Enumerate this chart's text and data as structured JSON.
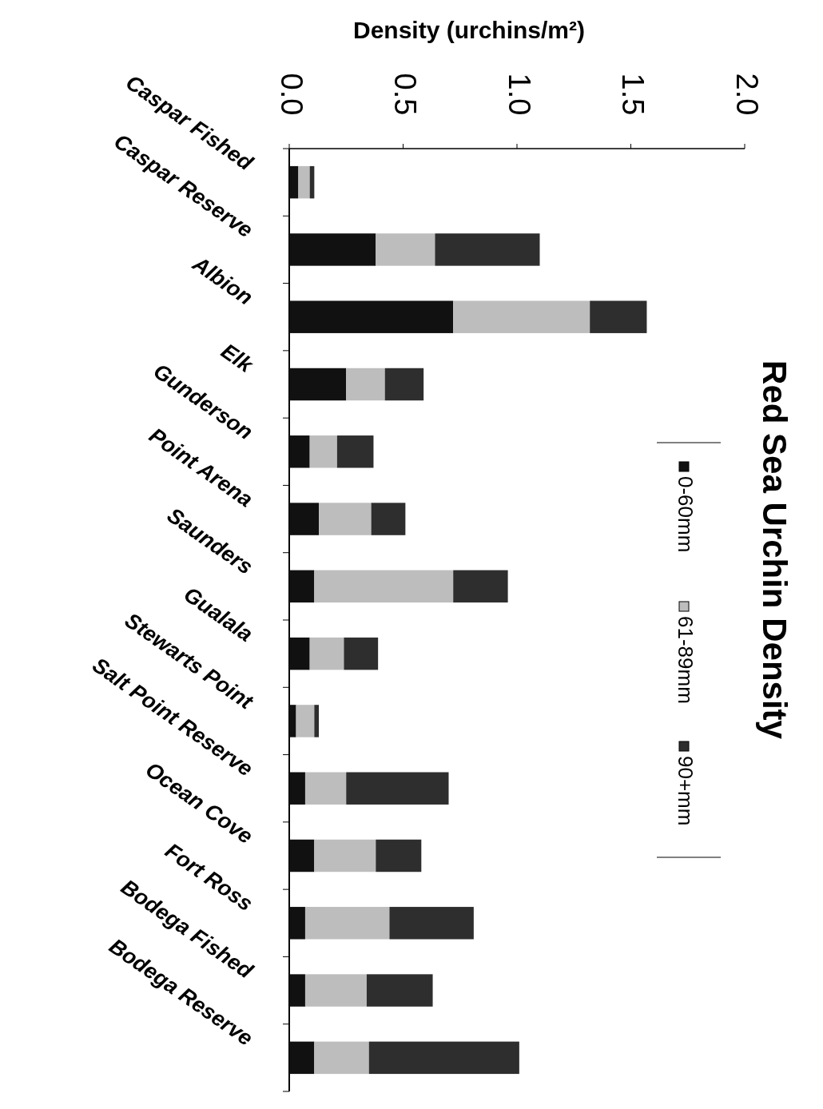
{
  "chart_data": {
    "type": "bar",
    "orientation": "horizontal",
    "stacked": true,
    "title": "Red Sea Urchin Density",
    "xlabel": "Density (urchins/m²)",
    "categories": [
      "Caspar Fished",
      "Caspar Reserve",
      "Albion",
      "Elk",
      "Gunderson",
      "Point Arena",
      "Saunders",
      "Gualala",
      "Stewarts Point",
      "Salt Point Reserve",
      "Ocean Cove",
      "Fort Ross",
      "Bodega Fished",
      "Bodega Reserve"
    ],
    "series": [
      {
        "name": "0-60mm",
        "color": "#111111",
        "values": [
          0.04,
          0.38,
          0.72,
          0.25,
          0.09,
          0.13,
          0.11,
          0.09,
          0.03,
          0.07,
          0.11,
          0.07,
          0.07,
          0.11
        ]
      },
      {
        "name": "61-89mm",
        "color": "#bdbdbd",
        "values": [
          0.05,
          0.26,
          0.6,
          0.17,
          0.12,
          0.23,
          0.61,
          0.15,
          0.08,
          0.18,
          0.27,
          0.37,
          0.27,
          0.24
        ]
      },
      {
        "name": "90+mm",
        "color": "#2e2e2e",
        "values": [
          0.02,
          0.46,
          0.25,
          0.17,
          0.16,
          0.15,
          0.24,
          0.15,
          0.02,
          0.45,
          0.2,
          0.37,
          0.29,
          0.66
        ]
      }
    ],
    "xlim": [
      0,
      2
    ],
    "xticks": [
      {
        "value": 0,
        "label": "0.0"
      },
      {
        "value": 0.5,
        "label": "0.5"
      },
      {
        "value": 1,
        "label": "1.0"
      },
      {
        "value": 1.5,
        "label": "1.5"
      },
      {
        "value": 2,
        "label": "2.0"
      }
    ],
    "legend": "right"
  }
}
